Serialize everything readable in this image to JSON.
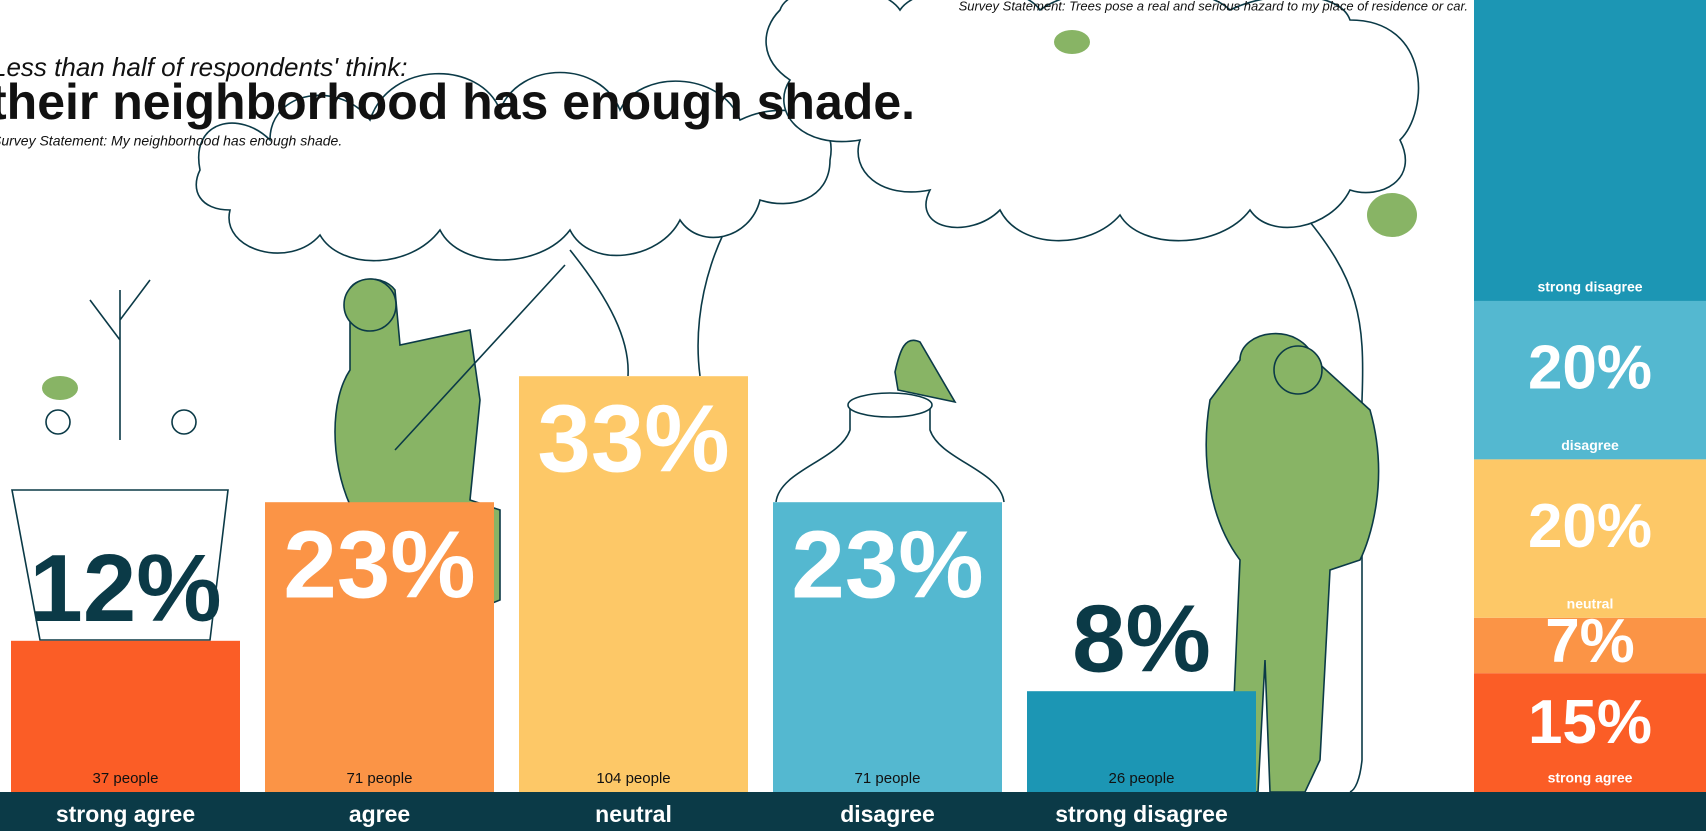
{
  "chart_data": [
    {
      "type": "bar",
      "subtitle": "Less than half of respondents' think:",
      "title": "their neighborhood has enough shade.",
      "note": "Survey Statement: My neighborhood has enough shade.",
      "categories": [
        "strong agree",
        "agree",
        "neutral",
        "disagree",
        "strong disagree"
      ],
      "values": [
        12,
        23,
        33,
        23,
        8
      ],
      "value_labels": [
        "12%",
        "23%",
        "33%",
        "23%",
        "8%"
      ],
      "people_labels": [
        "37 people",
        "71 people",
        "104 people",
        "71 people",
        "26 people"
      ],
      "colors": [
        "#fb5d26",
        "#fb9446",
        "#fdc867",
        "#54b8d0",
        "#1c96b4"
      ]
    },
    {
      "type": "stacked-bar",
      "note": "Survey Statement: Trees pose a real and serious hazard to my place of residence or car.",
      "categories": [
        "strong agree",
        null,
        "neutral",
        "disagree",
        "strong disagree"
      ],
      "values": [
        15,
        7,
        20,
        20,
        38
      ],
      "value_labels": [
        "15%",
        "7%",
        "20%",
        "20%",
        null
      ],
      "colors": [
        "#fb5d26",
        "#fb9446",
        "#fdc867",
        "#54b8d0",
        "#1c96b4"
      ]
    }
  ]
}
